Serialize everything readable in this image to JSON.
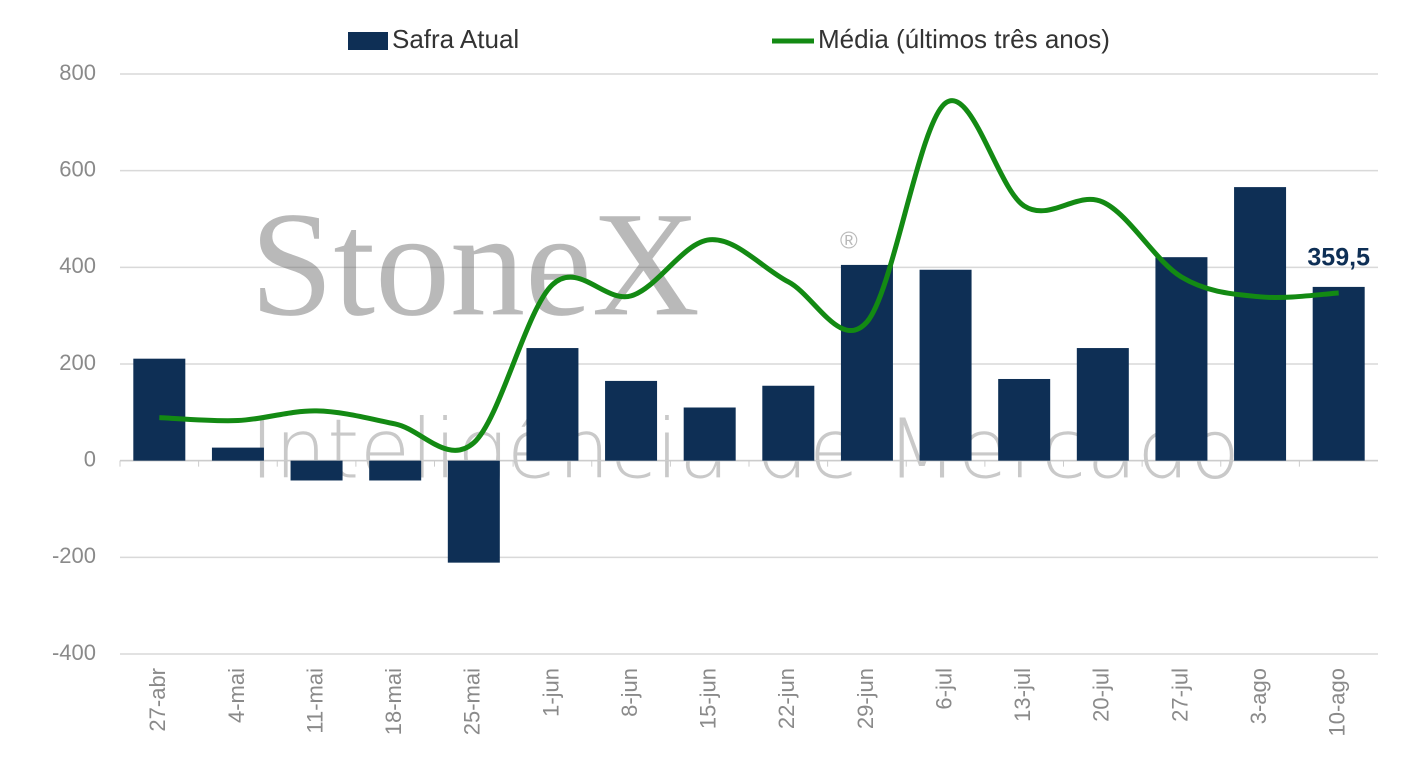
{
  "chart_data": {
    "type": "bar-line",
    "categories": [
      "27-abr",
      "4-mai",
      "11-mai",
      "18-mai",
      "25-mai",
      "1-jun",
      "8-jun",
      "15-jun",
      "22-jun",
      "29-jun",
      "6-jul",
      "13-jul",
      "20-jul",
      "27-jul",
      "3-ago",
      "10-ago"
    ],
    "series": [
      {
        "name": "Safra Atual",
        "type": "bar",
        "color": "#0e2f55",
        "values": [
          211,
          27,
          -41,
          -41,
          -211,
          233,
          165,
          110,
          155,
          405,
          395,
          169,
          233,
          421,
          566,
          359.5
        ],
        "value_labels": [
          null,
          null,
          null,
          null,
          null,
          null,
          null,
          null,
          null,
          null,
          null,
          null,
          null,
          null,
          null,
          "359,5"
        ]
      },
      {
        "name": "Média (últimos três anos)",
        "type": "line",
        "color": "#138a13",
        "values": [
          89,
          83,
          103,
          76,
          37,
          364,
          341,
          457,
          370,
          287,
          740,
          527,
          535,
          380,
          339,
          347
        ]
      }
    ],
    "ylim": [
      -400,
      800
    ],
    "yticks": [
      -400,
      -200,
      0,
      200,
      400,
      600,
      800
    ],
    "grid": true
  },
  "watermark": {
    "brand": "StoneX",
    "mark": "®",
    "tagline": "Inteligência de Mercado"
  }
}
